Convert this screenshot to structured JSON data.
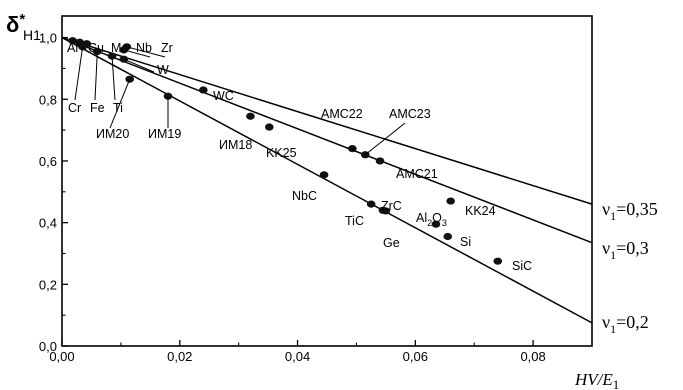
{
  "chart_data": {
    "type": "scatter",
    "ylabel": {
      "main": "δ",
      "sup": "*",
      "sub": "H1"
    },
    "xlabel": {
      "main": "HV/E",
      "sub": "1"
    },
    "xlim": [
      0,
      0.09
    ],
    "ylim": [
      0,
      1.07
    ],
    "x_ticks": [
      "0,00",
      "0,02",
      "0,04",
      "0,06",
      "0,08"
    ],
    "x_tick_values": [
      0,
      0.02,
      0.04,
      0.06,
      0.08
    ],
    "y_ticks": [
      "0,0",
      "0,2",
      "0,4",
      "0,6",
      "0,8",
      "1,0"
    ],
    "y_tick_values": [
      0,
      0.2,
      0.4,
      0.6,
      0.8,
      1.0
    ],
    "grid": false,
    "lines": [
      {
        "label": "ν",
        "sub": "1",
        "value": "=0,35",
        "x": [
          0,
          0.09
        ],
        "y": [
          1.0,
          0.46
        ]
      },
      {
        "label": "ν",
        "sub": "1",
        "value": "=0,3",
        "x": [
          0,
          0.09
        ],
        "y": [
          1.0,
          0.335
        ]
      },
      {
        "label": "ν",
        "sub": "1",
        "value": "=0,2",
        "x": [
          0,
          0.09
        ],
        "y": [
          1.0,
          0.075
        ]
      }
    ],
    "points": [
      {
        "label": "Al",
        "x": 0.0018,
        "y": 0.99
      },
      {
        "label": "Cu",
        "x": 0.003,
        "y": 0.985
      },
      {
        "label": "Mo",
        "x": 0.0042,
        "y": 0.98
      },
      {
        "label": "Nb",
        "x": 0.0105,
        "y": 0.96
      },
      {
        "label": "Zr",
        "x": 0.011,
        "y": 0.97
      },
      {
        "label": "W",
        "x": 0.0105,
        "y": 0.93
      },
      {
        "label": "Cr",
        "x": 0.0035,
        "y": 0.97
      },
      {
        "label": "Fe",
        "x": 0.006,
        "y": 0.955
      },
      {
        "label": "Ti",
        "x": 0.0085,
        "y": 0.94
      },
      {
        "label": "ИМ20",
        "x": 0.0115,
        "y": 0.865
      },
      {
        "label": "ИМ19",
        "x": 0.018,
        "y": 0.81
      },
      {
        "label": "WC",
        "x": 0.024,
        "y": 0.83
      },
      {
        "label": "ИМ18",
        "x": 0.032,
        "y": 0.745
      },
      {
        "label": "KK25",
        "x": 0.0352,
        "y": 0.71
      },
      {
        "label": "AMC22",
        "x": 0.0493,
        "y": 0.64
      },
      {
        "label": "AMC23",
        "x": 0.0515,
        "y": 0.62
      },
      {
        "label": "AMC21",
        "x": 0.054,
        "y": 0.6
      },
      {
        "label": "NbC",
        "x": 0.0445,
        "y": 0.555
      },
      {
        "label": "TiC",
        "x": 0.0525,
        "y": 0.46
      },
      {
        "label": "ZrC",
        "x": 0.0545,
        "y": 0.44
      },
      {
        "label": "Ge",
        "x": 0.055,
        "y": 0.438
      },
      {
        "label": "KK24",
        "x": 0.066,
        "y": 0.47
      },
      {
        "label": "Al2O3",
        "x": 0.0635,
        "y": 0.395
      },
      {
        "label": "Si",
        "x": 0.0655,
        "y": 0.355
      },
      {
        "label": "SiC",
        "x": 0.074,
        "y": 0.275
      }
    ]
  }
}
